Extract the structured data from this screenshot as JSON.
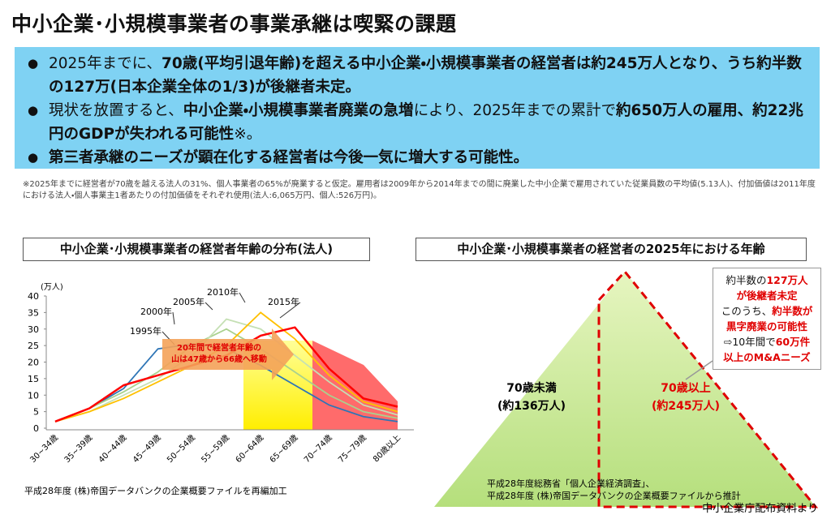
{
  "slide": {
    "title": "中小企業･小規模事業者の事業承継は喫緊の課題",
    "bullets": [
      [
        "2025年までに、",
        "70歳(平均引退年齢)を超える中小企業・小規模事業者の経営者は約245万人となり、うち約半数の127万(日本企業全体の1/3)が後継者未定。"
      ],
      [
        "現状を放置すると、",
        "中小企業・小規模事業者廃業の急増",
        "により、2025年までの累計で",
        "約650万人の雇用、約22兆円のGDPが失われる可能性",
        "※。"
      ],
      [
        "第三者承継のニーズが顕在化する経営者は今後一気に増大する可能性。"
      ]
    ],
    "note": "※2025年までに経営者が70歳を越える法人の31%、個人事業者の65%が廃業すると仮定。雇用者は2009年から2014年までの間に廃業した中小企業で雇用されていた従業員数の平均値(5.13人)、付加価値は2011年度における法人・個人事業主1者あたりの付加価値をそれぞれ使用(法人:6,065万円、個人:526万円)。",
    "left_header": "中小企業･小規模事業者の経営者年齢の分布(法人)",
    "left_source": "平成28年度 (株)帝国データバンクの企業概要ファイルを再編加工",
    "right_header": "中小企業･小規模事業者の経営者の2025年における年齢",
    "under70": [
      "70歳未満",
      "(約136万人)"
    ],
    "over70": [
      "70歳以上",
      "(約245万人)"
    ],
    "callout": [
      [
        "約半数の",
        "127万人"
      ],
      [
        "が後継者未定"
      ],
      [
        "このうち、",
        "約半数が"
      ],
      [
        "黒字廃業の可能性"
      ],
      [
        "⇨10年間で",
        "60万件"
      ],
      [
        "以上のM&Aニーズ"
      ]
    ],
    "right_source": [
      "平成28年度総務省「個人企業経済調査」、",
      "平成28年度 (株)帝国データバンクの企業概要ファイルから推計"
    ],
    "footer": "中小企業庁配布資料より"
  },
  "chart_data": {
    "type": "line",
    "y_label": "(万人)",
    "categories": [
      "30~34歳",
      "35~39歳",
      "40~44歳",
      "45~49歳",
      "50~54歳",
      "55~59歳",
      "60~64歳",
      "65~69歳",
      "70~74歳",
      "75~79歳",
      "80歳以上"
    ],
    "series": [
      {
        "name": "1995年",
        "color": "#2e75b6",
        "values": [
          2,
          6,
          12,
          24,
          25.5,
          24,
          19,
          13,
          7,
          3.5,
          2
        ]
      },
      {
        "name": "2000年",
        "color": "#a9d18e",
        "values": [
          2,
          6,
          11,
          17,
          25,
          30,
          24,
          17,
          10,
          5,
          3
        ]
      },
      {
        "name": "2005年",
        "color": "#c5e0b4",
        "values": [
          2,
          5,
          10,
          15,
          22,
          33,
          30,
          22,
          14,
          7,
          4
        ]
      },
      {
        "name": "2010年",
        "color": "#ffc000",
        "values": [
          2,
          5,
          9,
          14,
          19,
          25,
          35,
          27,
          16,
          8,
          5
        ]
      },
      {
        "name": "2015年",
        "color": "#ff0000",
        "values": [
          2,
          6,
          13,
          16,
          19,
          22,
          28,
          30.5,
          18,
          9,
          6.5
        ]
      }
    ],
    "annotation": [
      "20年間で経営者年齢の",
      "山は47歳から66歳へ移動"
    ],
    "ylim": [
      0,
      40
    ],
    "yticks": [
      0,
      5,
      10,
      15,
      20,
      25,
      30,
      35,
      40
    ],
    "grid": false
  }
}
